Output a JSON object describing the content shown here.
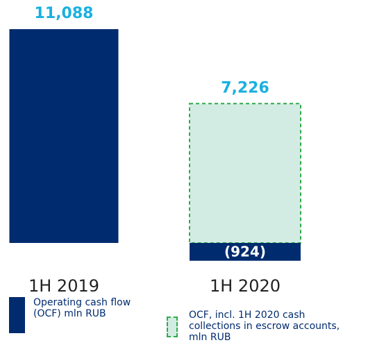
{
  "chart_data": {
    "type": "bar",
    "categories": [
      "1H 2019",
      "1H 2020"
    ],
    "series": [
      {
        "name": "Operating cash flow (OCF) mln RUB",
        "color": "#002b6f",
        "values": [
          11088,
          -924
        ],
        "value_labels": [
          "11,088",
          "(924)"
        ]
      },
      {
        "name": "OCF, incl. 1H 2020 cash collections in escrow accounts, mln RUB",
        "color": "#d3ece3",
        "edge_color": "#2eaa4a",
        "dashed": true,
        "values": [
          null,
          7226
        ],
        "value_labels": [
          null,
          "7,226"
        ]
      }
    ],
    "value_label_color": "#1ab0e0"
  }
}
